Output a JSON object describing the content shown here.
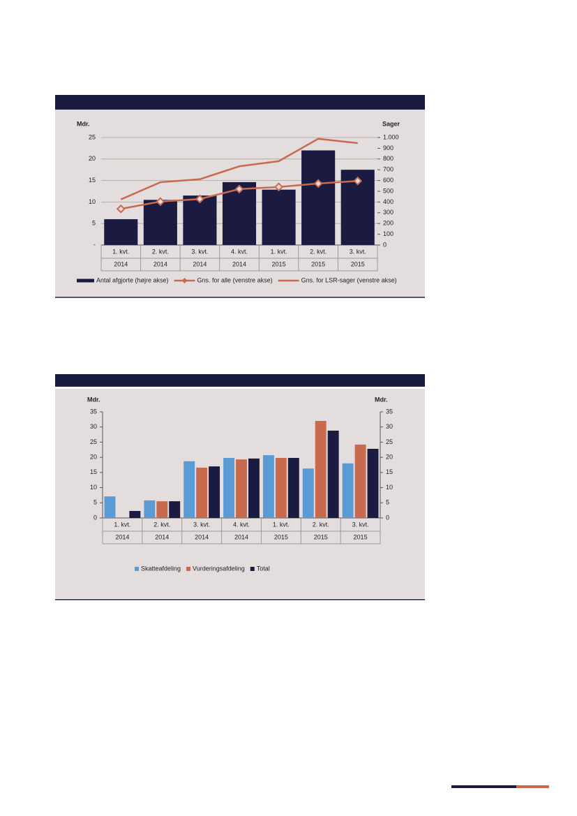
{
  "chart_data": [
    {
      "type": "combo",
      "y_label": "Mdr.",
      "y2_label": "Sager",
      "categories": [
        [
          "1. kvt.",
          "2014"
        ],
        [
          "2. kvt.",
          "2014"
        ],
        [
          "3. kvt.",
          "2014"
        ],
        [
          "4. kvt.",
          "2014"
        ],
        [
          "1. kvt.",
          "2015"
        ],
        [
          "2. kvt.",
          "2015"
        ],
        [
          "3. kvt.",
          "2015"
        ]
      ],
      "series": [
        {
          "name": "Antal afgjorte (højre akse)",
          "type": "bar",
          "axis": "y2",
          "color": "#1b1a40",
          "values": [
            240,
            420,
            460,
            585,
            515,
            880,
            700
          ]
        },
        {
          "name": "Gns. for alle (venstre akse)",
          "type": "line",
          "marker": "diamond",
          "color": "#c96a4f",
          "values": [
            8.4,
            10.1,
            10.7,
            13.0,
            13.5,
            14.3,
            14.9
          ]
        },
        {
          "name": "Gns. for LSR-sager (venstre akse)",
          "type": "line",
          "color": "#c96a4f",
          "values": [
            10.6,
            14.6,
            15.3,
            18.3,
            19.5,
            24.7,
            23.7
          ]
        }
      ],
      "ylim": [
        0,
        25
      ],
      "yticks": [
        {
          "value": 0,
          "label": "-"
        },
        5,
        10,
        15,
        20,
        25
      ],
      "y2lim": [
        0,
        1000
      ],
      "y2ticks": [
        0,
        100,
        200,
        300,
        400,
        500,
        600,
        700,
        800,
        900,
        {
          "value": 1000,
          "label": "1.000"
        }
      ],
      "grid": true
    },
    {
      "type": "bar",
      "y_label": "Mdr.",
      "y2_label": "Mdr.",
      "categories": [
        [
          "1. kvt.",
          "2014"
        ],
        [
          "2. kvt.",
          "2014"
        ],
        [
          "3. kvt.",
          "2014"
        ],
        [
          "4. kvt.",
          "2014"
        ],
        [
          "1. kvt.",
          "2015"
        ],
        [
          "2. kvt.",
          "2015"
        ],
        [
          "3. kvt.",
          "2015"
        ]
      ],
      "series": [
        {
          "name": "Skatteafdeling",
          "color": "#5b9bd5",
          "values": [
            7.1,
            5.8,
            18.7,
            19.8,
            20.7,
            16.3,
            18.0
          ]
        },
        {
          "name": "Vurderingsafdeling",
          "color": "#c96a4f",
          "values": [
            null,
            5.5,
            16.6,
            19.3,
            19.8,
            32.0,
            24.2
          ]
        },
        {
          "name": "Total",
          "color": "#1b1a40",
          "values": [
            2.3,
            5.5,
            17.0,
            19.6,
            19.8,
            28.8,
            22.8
          ]
        }
      ],
      "ylim": [
        0,
        35
      ],
      "yticks": [
        0,
        5,
        10,
        15,
        20,
        25,
        30,
        35
      ],
      "y2lim": [
        0,
        35
      ],
      "y2ticks": [
        0,
        5,
        10,
        15,
        20,
        25,
        30,
        35
      ],
      "grid": false
    }
  ]
}
